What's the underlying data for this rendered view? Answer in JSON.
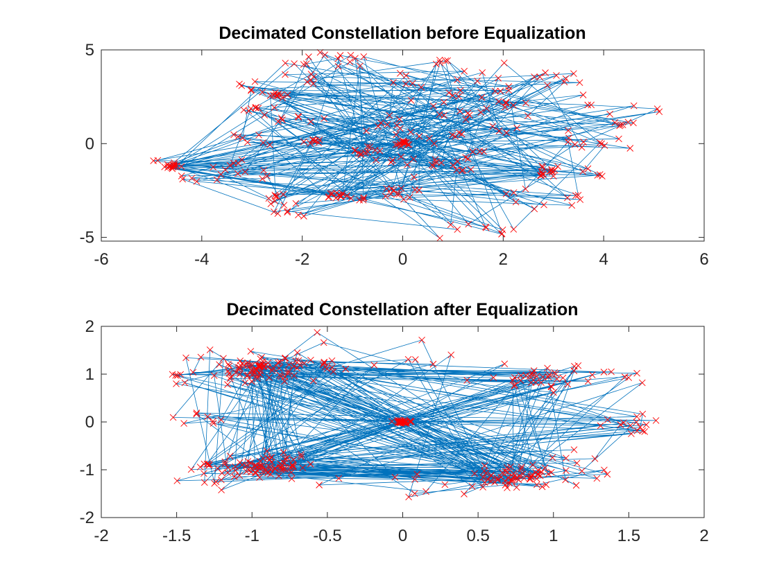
{
  "chart_data": [
    {
      "type": "scatter",
      "title": "Decimated Constellation before Equalization",
      "xlim": [
        -6,
        6
      ],
      "ylim": [
        -5.2,
        5
      ],
      "xticks": [
        -6,
        -4,
        -2,
        0,
        2,
        4,
        6
      ],
      "yticks": [
        -5,
        0,
        5
      ],
      "x_tick_labels": [
        "-6",
        "-4",
        "-2",
        "0",
        "2",
        "4",
        "6"
      ],
      "y_tick_labels": [
        "-5",
        "0",
        "5"
      ],
      "grid": false,
      "line_color": "#0072BD",
      "marker_color": "#FF0000",
      "marker": "x",
      "connected": true,
      "seed": 17,
      "clusters": [
        [
          -4.6,
          -1.2,
          0.09,
          16
        ],
        [
          -3.0,
          -1.5,
          0.25,
          5
        ],
        [
          -3.5,
          -1.1,
          0.2,
          6
        ],
        [
          -4.0,
          -1.8,
          0.2,
          6
        ],
        [
          -3.1,
          0.2,
          0.2,
          7
        ],
        [
          -2.8,
          1.8,
          0.25,
          8
        ],
        [
          -2.5,
          2.6,
          0.12,
          10
        ],
        [
          -3.2,
          3.0,
          0.2,
          5
        ],
        [
          -1.7,
          4.3,
          0.35,
          9
        ],
        [
          -0.9,
          4.6,
          0.35,
          6
        ],
        [
          -1.9,
          3.5,
          0.3,
          6
        ],
        [
          -1.8,
          0.1,
          0.1,
          8
        ],
        [
          -2.0,
          1.3,
          0.3,
          7
        ],
        [
          -1.3,
          -2.8,
          0.12,
          14
        ],
        [
          -2.2,
          -3.6,
          0.25,
          7
        ],
        [
          -2.6,
          -3.0,
          0.3,
          8
        ],
        [
          -0.9,
          -3.0,
          0.3,
          6
        ],
        [
          -0.2,
          -2.7,
          0.3,
          6
        ],
        [
          -0.7,
          -0.4,
          0.15,
          12
        ],
        [
          0.0,
          0.0,
          0.08,
          14
        ],
        [
          -0.4,
          0.9,
          0.35,
          8
        ],
        [
          0.4,
          0.6,
          0.4,
          8
        ],
        [
          0.4,
          -1.0,
          0.3,
          8
        ],
        [
          0.0,
          -2.3,
          0.25,
          6
        ],
        [
          0.9,
          -1.2,
          0.2,
          8
        ],
        [
          1.2,
          -0.4,
          0.3,
          6
        ],
        [
          1.4,
          1.9,
          0.35,
          12
        ],
        [
          0.8,
          2.7,
          0.35,
          8
        ],
        [
          1.8,
          3.5,
          0.4,
          8
        ],
        [
          2.3,
          2.6,
          0.3,
          6
        ],
        [
          0.8,
          4.3,
          0.08,
          5
        ],
        [
          1.2,
          -4.3,
          0.3,
          5
        ],
        [
          2.0,
          -4.6,
          0.3,
          5
        ],
        [
          2.2,
          -2.6,
          0.3,
          5
        ],
        [
          2.2,
          0.9,
          0.25,
          5
        ],
        [
          2.9,
          -1.6,
          0.2,
          14
        ],
        [
          2.9,
          3.4,
          0.2,
          5
        ],
        [
          3.5,
          -2.9,
          0.3,
          6
        ],
        [
          3.4,
          0.0,
          0.3,
          6
        ],
        [
          3.7,
          -1.4,
          0.2,
          5
        ],
        [
          3.8,
          1.6,
          0.3,
          5
        ],
        [
          4.4,
          1.1,
          0.1,
          5
        ],
        [
          4.2,
          0.2,
          0.2,
          5
        ],
        [
          5.1,
          1.8,
          0.05,
          2
        ],
        [
          -4.9,
          -0.9,
          0.08,
          2
        ],
        [
          3.3,
          3.2,
          0.3,
          4
        ],
        [
          -0.2,
          3.2,
          0.35,
          5
        ]
      ]
    },
    {
      "type": "scatter",
      "title": "Decimated Constellation after Equalization",
      "xlim": [
        -2,
        2
      ],
      "ylim": [
        -2,
        2
      ],
      "xticks": [
        -2,
        -1.5,
        -1,
        -0.5,
        0,
        0.5,
        1,
        1.5,
        2
      ],
      "yticks": [
        -2,
        -1,
        0,
        1,
        2
      ],
      "x_tick_labels": [
        "-2",
        "-1.5",
        "-1",
        "-0.5",
        "0",
        "0.5",
        "1",
        "1.5",
        "2"
      ],
      "y_tick_labels": [
        "-2",
        "-1",
        "0",
        "1",
        "2"
      ],
      "grid": false,
      "line_color": "#0072BD",
      "marker_color": "#FF0000",
      "marker": "x",
      "connected": true,
      "seed": 41,
      "clusters": [
        [
          -0.92,
          1.12,
          0.14,
          70
        ],
        [
          -0.9,
          -0.92,
          0.15,
          70
        ],
        [
          0.75,
          -1.12,
          0.14,
          60
        ],
        [
          0.82,
          0.95,
          0.14,
          30
        ],
        [
          0.0,
          0.0,
          0.025,
          28
        ],
        [
          -1.3,
          1.05,
          0.15,
          12
        ],
        [
          -1.3,
          -1.05,
          0.15,
          15
        ],
        [
          -1.35,
          0.05,
          0.1,
          8
        ],
        [
          1.5,
          0.0,
          0.12,
          12
        ],
        [
          1.3,
          1.0,
          0.15,
          10
        ],
        [
          1.2,
          -0.9,
          0.15,
          10
        ],
        [
          -0.3,
          1.5,
          0.3,
          6
        ],
        [
          0.1,
          1.4,
          0.3,
          6
        ],
        [
          -0.1,
          -1.35,
          0.3,
          6
        ],
        [
          0.4,
          -1.3,
          0.2,
          5
        ],
        [
          -1.5,
          1.0,
          0.05,
          3
        ],
        [
          1.6,
          -0.2,
          0.05,
          3
        ],
        [
          -0.6,
          1.2,
          0.1,
          10
        ]
      ]
    }
  ]
}
